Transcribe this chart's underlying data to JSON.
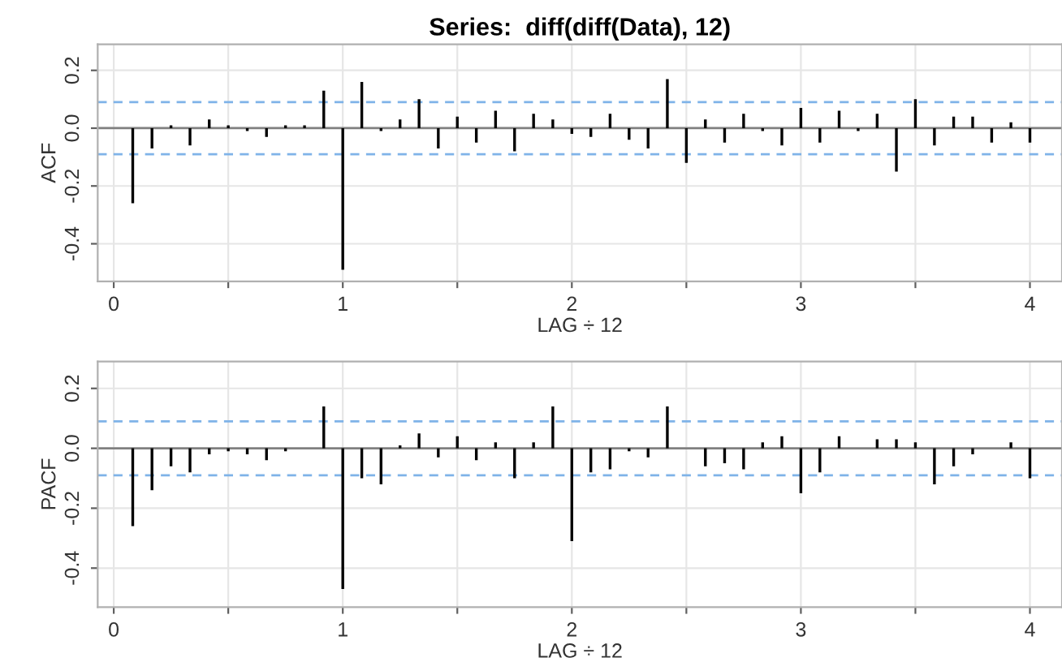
{
  "chart_data": [
    {
      "type": "bar",
      "title": "Series:  diff(diff(Data), 12)",
      "xlabel": "LAG ÷ 12",
      "ylabel": "ACF",
      "x": [
        0.083,
        0.167,
        0.25,
        0.333,
        0.417,
        0.5,
        0.583,
        0.667,
        0.75,
        0.833,
        0.917,
        1.0,
        1.083,
        1.167,
        1.25,
        1.333,
        1.417,
        1.5,
        1.583,
        1.667,
        1.75,
        1.833,
        1.917,
        2.0,
        2.083,
        2.167,
        2.25,
        2.333,
        2.417,
        2.5,
        2.583,
        2.667,
        2.75,
        2.833,
        2.917,
        3.0,
        3.083,
        3.167,
        3.25,
        3.333,
        3.417,
        3.5,
        3.583,
        3.667,
        3.75,
        3.833,
        3.917,
        4.0
      ],
      "series": [
        {
          "color": "#000000",
          "values": [
            -0.26,
            -0.07,
            0.01,
            -0.06,
            0.03,
            0.01,
            -0.01,
            -0.03,
            0.01,
            0.01,
            0.13,
            -0.49,
            0.16,
            -0.01,
            0.03,
            0.1,
            -0.07,
            0.04,
            -0.05,
            0.06,
            -0.08,
            0.05,
            0.03,
            -0.02,
            -0.03,
            0.05,
            -0.04,
            -0.07,
            0.17,
            -0.12,
            0.03,
            -0.05,
            0.05,
            -0.01,
            -0.06,
            0.07,
            -0.05,
            0.06,
            -0.01,
            0.05,
            -0.15,
            0.1,
            -0.06,
            0.04,
            0.04,
            -0.05,
            0.02,
            -0.05
          ]
        }
      ],
      "xlim": [
        -0.07,
        4.14
      ],
      "ylim": [
        -0.53,
        0.29
      ],
      "xticks": [
        0,
        {
          "value": 0.5,
          "label": null
        },
        1,
        {
          "value": 1.5,
          "label": null
        },
        2,
        {
          "value": 2.5,
          "label": null
        },
        3,
        {
          "value": 3.5,
          "label": null
        },
        4
      ],
      "yticks": [
        {
          "value": -0.4,
          "label": "-0.4"
        },
        {
          "value": -0.2,
          "label": "-0.2"
        },
        {
          "value": 0,
          "label": "0.0"
        },
        {
          "value": 0.2,
          "label": "0.2"
        }
      ],
      "ref_lines": [
        {
          "axis": "y",
          "value": 0,
          "color": "#808080",
          "line_style": "solid"
        },
        {
          "axis": "y",
          "value": 0.09,
          "color": "#7fb3e8",
          "line_style": "dashed"
        },
        {
          "axis": "y",
          "value": -0.09,
          "color": "#7fb3e8",
          "line_style": "dashed"
        }
      ],
      "grid": true
    },
    {
      "type": "bar",
      "xlabel": "LAG ÷ 12",
      "ylabel": "PACF",
      "x": [
        0.083,
        0.167,
        0.25,
        0.333,
        0.417,
        0.5,
        0.583,
        0.667,
        0.75,
        0.833,
        0.917,
        1.0,
        1.083,
        1.167,
        1.25,
        1.333,
        1.417,
        1.5,
        1.583,
        1.667,
        1.75,
        1.833,
        1.917,
        2.0,
        2.083,
        2.167,
        2.25,
        2.333,
        2.417,
        2.5,
        2.583,
        2.667,
        2.75,
        2.833,
        2.917,
        3.0,
        3.083,
        3.167,
        3.25,
        3.333,
        3.417,
        3.5,
        3.583,
        3.667,
        3.75,
        3.833,
        3.917,
        4.0
      ],
      "series": [
        {
          "color": "#000000",
          "values": [
            -0.26,
            -0.14,
            -0.06,
            -0.08,
            -0.02,
            -0.01,
            -0.02,
            -0.04,
            -0.01,
            0.0,
            0.14,
            -0.47,
            -0.1,
            -0.12,
            0.01,
            0.05,
            -0.03,
            0.04,
            -0.04,
            0.02,
            -0.1,
            0.02,
            0.14,
            -0.31,
            -0.08,
            -0.07,
            -0.01,
            -0.03,
            0.14,
            0.0,
            -0.06,
            -0.05,
            -0.07,
            0.02,
            0.04,
            -0.15,
            -0.08,
            0.04,
            0.0,
            0.03,
            0.03,
            0.02,
            -0.12,
            -0.06,
            -0.02,
            0.0,
            0.02,
            -0.1
          ]
        }
      ],
      "xlim": [
        -0.07,
        4.14
      ],
      "ylim": [
        -0.53,
        0.29
      ],
      "xticks": [
        0,
        {
          "value": 0.5,
          "label": null
        },
        1,
        {
          "value": 1.5,
          "label": null
        },
        2,
        {
          "value": 2.5,
          "label": null
        },
        3,
        {
          "value": 3.5,
          "label": null
        },
        4
      ],
      "yticks": [
        {
          "value": -0.4,
          "label": "-0.4"
        },
        {
          "value": -0.2,
          "label": "-0.2"
        },
        {
          "value": 0,
          "label": "0.0"
        },
        {
          "value": 0.2,
          "label": "0.2"
        }
      ],
      "ref_lines": [
        {
          "axis": "y",
          "value": 0,
          "color": "#808080",
          "line_style": "solid"
        },
        {
          "axis": "y",
          "value": 0.09,
          "color": "#7fb3e8",
          "line_style": "dashed"
        },
        {
          "axis": "y",
          "value": -0.09,
          "color": "#7fb3e8",
          "line_style": "dashed"
        }
      ],
      "grid": true
    }
  ]
}
